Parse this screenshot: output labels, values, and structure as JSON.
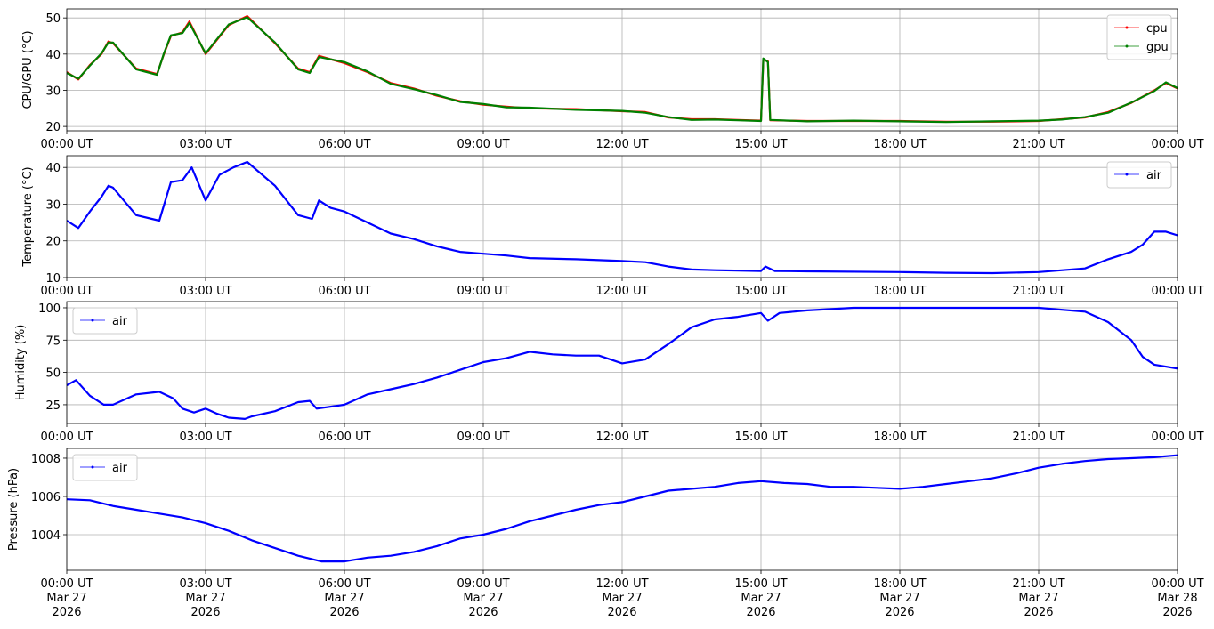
{
  "chart_data": [
    {
      "type": "line",
      "ylabel": "CPU/GPU (°C)",
      "x": [
        0,
        0.25,
        0.5,
        0.75,
        0.9,
        1.0,
        1.5,
        1.95,
        2.1,
        2.25,
        2.5,
        2.65,
        3.0,
        3.5,
        3.9,
        4.5,
        5.0,
        5.25,
        5.45,
        6.0,
        6.5,
        7.0,
        7.5,
        8.0,
        8.5,
        9,
        9.5,
        10,
        11,
        12,
        12.5,
        13,
        13.5,
        14,
        14.5,
        15,
        15.05,
        15.15,
        15.2,
        16,
        17,
        18,
        19,
        20,
        21,
        21.5,
        22,
        22.5,
        23,
        23.5,
        23.75,
        24
      ],
      "series": [
        {
          "name": "cpu",
          "color": "#ff0000",
          "values": [
            35,
            33,
            37,
            40,
            43.5,
            43,
            36,
            34.5,
            40,
            45,
            46,
            49,
            40,
            48,
            50.5,
            43,
            36,
            35,
            39.5,
            37.5,
            35,
            32,
            30.5,
            28.5,
            27,
            26,
            25.5,
            25,
            24.8,
            24.2,
            24,
            22.5,
            22,
            22,
            21.8,
            21.6,
            38.5,
            38,
            21.7,
            21.5,
            21.5,
            21.5,
            21.3,
            21.3,
            21.5,
            22,
            22.5,
            24,
            26.5,
            30,
            32,
            30.5
          ]
        },
        {
          "name": "gpu",
          "color": "#008000",
          "values": [
            34.8,
            33.2,
            36.8,
            40.2,
            43.2,
            43.2,
            35.8,
            34.3,
            40.2,
            45.2,
            45.8,
            48.6,
            40.2,
            48.2,
            50.2,
            43.2,
            35.8,
            34.8,
            39.2,
            37.8,
            35.2,
            31.8,
            30.3,
            28.7,
            26.8,
            26.2,
            25.3,
            25.2,
            24.6,
            24.3,
            23.8,
            22.6,
            21.8,
            21.9,
            21.7,
            21.5,
            38.8,
            37.8,
            21.8,
            21.4,
            21.6,
            21.4,
            21.2,
            21.4,
            21.6,
            21.9,
            22.6,
            23.8,
            26.6,
            29.8,
            32.2,
            30.6
          ]
        }
      ],
      "xlim": [
        0,
        24
      ],
      "xticks": [
        {
          "value": 0,
          "label": "00:00 UT"
        },
        {
          "value": 3,
          "label": "03:00 UT"
        },
        {
          "value": 6,
          "label": "06:00 UT"
        },
        {
          "value": 9,
          "label": "09:00 UT"
        },
        {
          "value": 12,
          "label": "12:00 UT"
        },
        {
          "value": 15,
          "label": "15:00 UT"
        },
        {
          "value": 18,
          "label": "18:00 UT"
        },
        {
          "value": 21,
          "label": "21:00 UT"
        },
        {
          "value": 24,
          "label": "00:00 UT"
        }
      ],
      "ylim": [
        18.8,
        52.5
      ],
      "yticks": [
        20,
        30,
        40,
        50
      ],
      "grid": true,
      "legend": "upper right"
    },
    {
      "type": "line",
      "ylabel": "Temperature (°C)",
      "x": [
        0,
        0.25,
        0.5,
        0.75,
        0.9,
        1,
        1.5,
        2,
        2.25,
        2.5,
        2.7,
        3,
        3.3,
        3.6,
        3.9,
        4.5,
        5,
        5.3,
        5.45,
        5.7,
        6,
        6.5,
        7,
        7.5,
        8,
        8.5,
        9,
        9.5,
        10,
        11,
        12,
        12.5,
        13,
        13.5,
        14,
        15,
        15.1,
        15.3,
        16,
        18,
        19,
        20,
        21,
        22,
        22.5,
        23,
        23.25,
        23.5,
        23.75,
        24
      ],
      "series": [
        {
          "name": "air",
          "color": "#0000ff",
          "values": [
            25.5,
            23.5,
            28,
            32,
            35,
            34.5,
            27,
            25.5,
            36,
            36.5,
            40,
            31,
            38,
            40,
            41.5,
            35,
            27,
            26,
            31,
            29,
            28,
            25,
            22,
            20.5,
            18.5,
            17,
            16.5,
            16,
            15.3,
            15,
            14.5,
            14.2,
            13,
            12.2,
            12,
            11.8,
            13,
            11.8,
            11.7,
            11.5,
            11.3,
            11.2,
            11.5,
            12.5,
            15,
            17,
            19,
            22.5,
            22.5,
            21.5
          ]
        }
      ],
      "xlim": [
        0,
        24
      ],
      "xticks": [
        {
          "value": 0,
          "label": "00:00 UT"
        },
        {
          "value": 3,
          "label": "03:00 UT"
        },
        {
          "value": 6,
          "label": "06:00 UT"
        },
        {
          "value": 9,
          "label": "09:00 UT"
        },
        {
          "value": 12,
          "label": "12:00 UT"
        },
        {
          "value": 15,
          "label": "15:00 UT"
        },
        {
          "value": 18,
          "label": "18:00 UT"
        },
        {
          "value": 21,
          "label": "21:00 UT"
        },
        {
          "value": 24,
          "label": "00:00 UT"
        }
      ],
      "ylim": [
        10,
        43.2
      ],
      "yticks": [
        10,
        20,
        30,
        40
      ],
      "grid": true,
      "legend": "upper right"
    },
    {
      "type": "line",
      "ylabel": "Humidity (%)",
      "x": [
        0,
        0.2,
        0.5,
        0.8,
        1,
        1.5,
        2,
        2.3,
        2.5,
        2.75,
        3,
        3.25,
        3.5,
        3.85,
        4,
        4.5,
        5,
        5.25,
        5.4,
        6,
        6.5,
        7,
        7.5,
        8,
        8.5,
        9,
        9.5,
        10,
        10.5,
        11,
        11.5,
        12,
        12.5,
        13,
        13.5,
        14,
        14.5,
        15,
        15.15,
        15.4,
        16,
        17,
        18,
        21,
        22,
        22.5,
        23,
        23.25,
        23.5,
        24
      ],
      "series": [
        {
          "name": "air",
          "color": "#0000ff",
          "values": [
            40,
            44,
            32,
            25,
            25,
            33,
            35,
            30,
            22,
            19,
            22,
            18,
            15,
            14,
            16,
            20,
            27,
            28,
            22,
            25,
            33,
            37,
            41,
            46,
            52,
            58,
            61,
            66,
            64,
            63,
            63,
            57,
            60,
            72,
            85,
            91,
            93,
            96,
            90,
            96,
            98,
            100,
            100,
            100,
            97,
            89,
            75,
            62,
            56,
            53
          ]
        }
      ],
      "xlim": [
        0,
        24
      ],
      "xticks": [
        {
          "value": 0,
          "label": "00:00 UT"
        },
        {
          "value": 3,
          "label": "03:00 UT"
        },
        {
          "value": 6,
          "label": "06:00 UT"
        },
        {
          "value": 9,
          "label": "09:00 UT"
        },
        {
          "value": 12,
          "label": "12:00 UT"
        },
        {
          "value": 15,
          "label": "15:00 UT"
        },
        {
          "value": 18,
          "label": "18:00 UT"
        },
        {
          "value": 21,
          "label": "21:00 UT"
        },
        {
          "value": 24,
          "label": "00:00 UT"
        }
      ],
      "ylim": [
        10.5,
        104.8
      ],
      "yticks": [
        25,
        50,
        75,
        100
      ],
      "grid": true,
      "legend": "upper left"
    },
    {
      "type": "line",
      "ylabel": "Pressure (hPa)",
      "x": [
        0,
        0.5,
        1,
        1.5,
        2,
        2.5,
        3,
        3.5,
        4,
        4.5,
        5,
        5.5,
        6,
        6.5,
        7,
        7.5,
        8,
        8.5,
        9,
        9.5,
        10,
        10.5,
        11,
        11.5,
        12,
        12.5,
        13,
        13.5,
        14,
        14.5,
        15,
        15.5,
        16,
        16.5,
        17,
        17.5,
        18,
        18.5,
        19,
        19.5,
        20,
        20.5,
        21,
        21.5,
        22,
        22.5,
        23,
        23.5,
        24
      ],
      "series": [
        {
          "name": "air",
          "color": "#0000ff",
          "values": [
            1005.85,
            1005.8,
            1005.5,
            1005.3,
            1005.1,
            1004.9,
            1004.6,
            1004.2,
            1003.7,
            1003.3,
            1002.9,
            1002.6,
            1002.6,
            1002.8,
            1002.9,
            1003.1,
            1003.4,
            1003.8,
            1004.0,
            1004.3,
            1004.7,
            1005.0,
            1005.3,
            1005.55,
            1005.7,
            1006.0,
            1006.3,
            1006.4,
            1006.5,
            1006.7,
            1006.8,
            1006.7,
            1006.65,
            1006.5,
            1006.5,
            1006.45,
            1006.4,
            1006.5,
            1006.65,
            1006.8,
            1006.95,
            1007.2,
            1007.5,
            1007.7,
            1007.85,
            1007.95,
            1008.0,
            1008.05,
            1008.15
          ]
        }
      ],
      "xlim": [
        0,
        24
      ],
      "xticks": [
        {
          "value": 0,
          "label": "00:00 UT\nMar 27\n2026"
        },
        {
          "value": 3,
          "label": "03:00 UT\nMar 27\n2026"
        },
        {
          "value": 6,
          "label": "06:00 UT\nMar 27\n2026"
        },
        {
          "value": 9,
          "label": "09:00 UT\nMar 27\n2026"
        },
        {
          "value": 12,
          "label": "12:00 UT\nMar 27\n2026"
        },
        {
          "value": 15,
          "label": "15:00 UT\nMar 27\n2026"
        },
        {
          "value": 18,
          "label": "18:00 UT\nMar 27\n2026"
        },
        {
          "value": 21,
          "label": "21:00 UT\nMar 27\n2026"
        },
        {
          "value": 24,
          "label": "00:00 UT\nMar 28\n2026"
        }
      ],
      "ylim": [
        1002.14,
        1008.51
      ],
      "yticks": [
        1004,
        1006,
        1008
      ],
      "grid": true,
      "legend": "upper left"
    }
  ]
}
